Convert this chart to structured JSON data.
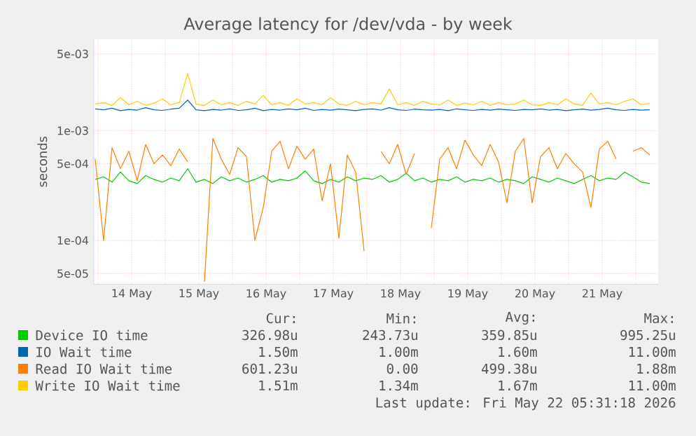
{
  "chart_data": {
    "type": "line",
    "title": "Average latency for /dev/vda - by week",
    "ylabel": "seconds",
    "log": "y",
    "grid": true,
    "legend": "bottom",
    "xlim": [
      "2026-05-13T22:30",
      "2026-05-22T08:00"
    ],
    "ylim": [
      4e-05,
      0.0068
    ],
    "xticks": [
      {
        "value": "2026-05-14T00:00",
        "label": null
      },
      {
        "value": "2026-05-14T12:00",
        "label": "14 May"
      },
      {
        "value": "2026-05-15T00:00",
        "label": null
      },
      {
        "value": "2026-05-15T12:00",
        "label": "15 May"
      },
      {
        "value": "2026-05-16T00:00",
        "label": null
      },
      {
        "value": "2026-05-16T12:00",
        "label": "16 May"
      },
      {
        "value": "2026-05-17T00:00",
        "label": null
      },
      {
        "value": "2026-05-17T12:00",
        "label": "17 May"
      },
      {
        "value": "2026-05-18T00:00",
        "label": null
      },
      {
        "value": "2026-05-18T12:00",
        "label": "18 May"
      },
      {
        "value": "2026-05-19T00:00",
        "label": null
      },
      {
        "value": "2026-05-19T12:00",
        "label": "19 May"
      },
      {
        "value": "2026-05-20T00:00",
        "label": null
      },
      {
        "value": "2026-05-20T12:00",
        "label": "20 May"
      },
      {
        "value": "2026-05-21T00:00",
        "label": null
      },
      {
        "value": "2026-05-21T12:00",
        "label": "21 May"
      },
      {
        "value": "2026-05-22T00:00",
        "label": null
      }
    ],
    "yticks": [
      {
        "value": 5e-05,
        "label": "5e-05"
      },
      {
        "value": 0.0001,
        "label": "1e-04"
      },
      {
        "value": 0.0005,
        "label": "5e-04"
      },
      {
        "value": 0.001,
        "label": "1e-03"
      },
      {
        "value": 0.005,
        "label": "5e-03"
      }
    ],
    "x": [
      "2026-05-13T23:00",
      "2026-05-14T02:00",
      "2026-05-14T05:00",
      "2026-05-14T08:00",
      "2026-05-14T11:00",
      "2026-05-14T14:00",
      "2026-05-14T17:00",
      "2026-05-14T20:00",
      "2026-05-14T23:00",
      "2026-05-15T02:00",
      "2026-05-15T05:00",
      "2026-05-15T08:00",
      "2026-05-15T11:00",
      "2026-05-15T14:00",
      "2026-05-15T17:00",
      "2026-05-15T20:00",
      "2026-05-15T23:00",
      "2026-05-16T02:00",
      "2026-05-16T05:00",
      "2026-05-16T08:00",
      "2026-05-16T11:00",
      "2026-05-16T14:00",
      "2026-05-16T17:00",
      "2026-05-16T20:00",
      "2026-05-16T23:00",
      "2026-05-17T02:00",
      "2026-05-17T05:00",
      "2026-05-17T08:00",
      "2026-05-17T11:00",
      "2026-05-17T14:00",
      "2026-05-17T17:00",
      "2026-05-17T20:00",
      "2026-05-17T23:00",
      "2026-05-18T02:00",
      "2026-05-18T05:00",
      "2026-05-18T08:00",
      "2026-05-18T11:00",
      "2026-05-18T14:00",
      "2026-05-18T17:00",
      "2026-05-18T20:00",
      "2026-05-18T23:00",
      "2026-05-19T02:00",
      "2026-05-19T05:00",
      "2026-05-19T08:00",
      "2026-05-19T11:00",
      "2026-05-19T14:00",
      "2026-05-19T17:00",
      "2026-05-19T20:00",
      "2026-05-19T23:00",
      "2026-05-20T02:00",
      "2026-05-20T05:00",
      "2026-05-20T08:00",
      "2026-05-20T11:00",
      "2026-05-20T14:00",
      "2026-05-20T17:00",
      "2026-05-20T20:00",
      "2026-05-20T23:00",
      "2026-05-21T02:00",
      "2026-05-21T05:00",
      "2026-05-21T08:00",
      "2026-05-21T11:00",
      "2026-05-21T14:00",
      "2026-05-21T17:00",
      "2026-05-21T20:00",
      "2026-05-21T23:00",
      "2026-05-22T02:00",
      "2026-05-22T05:00"
    ],
    "series": [
      {
        "name": "Device IO time",
        "color": "#00cc00",
        "values": [
          0.00036,
          0.00038,
          0.00034,
          0.00042,
          0.00035,
          0.00033,
          0.00039,
          0.00036,
          0.00034,
          0.00037,
          0.00035,
          0.00045,
          0.00034,
          0.00036,
          0.00033,
          0.00038,
          0.00035,
          0.00037,
          0.00034,
          0.00036,
          0.00039,
          0.00034,
          0.00036,
          0.00035,
          0.00037,
          0.00043,
          0.00035,
          0.00033,
          0.00036,
          0.00034,
          0.00038,
          0.00035,
          0.00037,
          0.00036,
          0.00039,
          0.00034,
          0.00036,
          0.00041,
          0.00035,
          0.00037,
          0.00034,
          0.00036,
          0.00035,
          0.00038,
          0.00034,
          0.00036,
          0.00035,
          0.00037,
          0.00034,
          0.00036,
          0.00035,
          0.00033,
          0.00038,
          0.00036,
          0.00034,
          0.00037,
          0.00035,
          0.00033,
          0.00036,
          0.00039,
          0.00035,
          0.00037,
          0.00036,
          0.00042,
          0.00038,
          0.00034,
          0.00033
        ]
      },
      {
        "name": "IO Wait time",
        "color": "#0066b3",
        "values": [
          0.00158,
          0.00155,
          0.0016,
          0.00152,
          0.00156,
          0.00154,
          0.00162,
          0.00155,
          0.00153,
          0.00157,
          0.0016,
          0.0019,
          0.00155,
          0.00152,
          0.00156,
          0.00154,
          0.00158,
          0.00153,
          0.00155,
          0.0016,
          0.00152,
          0.00156,
          0.00154,
          0.00158,
          0.00155,
          0.0016,
          0.00153,
          0.00156,
          0.00154,
          0.00157,
          0.00155,
          0.00152,
          0.00156,
          0.00158,
          0.00154,
          0.00162,
          0.00155,
          0.00153,
          0.00157,
          0.00155,
          0.00154,
          0.00156,
          0.00152,
          0.00158,
          0.00155,
          0.00153,
          0.00156,
          0.00154,
          0.00157,
          0.00155,
          0.00153,
          0.00156,
          0.00155,
          0.00158,
          0.00154,
          0.00156,
          0.00152,
          0.00155,
          0.00157,
          0.00154,
          0.00156,
          0.0016,
          0.00155,
          0.00153,
          0.00156,
          0.00154,
          0.00155
        ]
      },
      {
        "name": "Read IO Wait time",
        "color": "#ff8000",
        "values": [
          0.00055,
          0.0001,
          0.0007,
          0.00045,
          0.00065,
          0.00035,
          0.00075,
          0.0005,
          0.0006,
          0.00048,
          0.00068,
          0.00052,
          null,
          4.2e-05,
          0.00085,
          0.00055,
          0.0004,
          0.0007,
          0.00058,
          0.0001,
          0.0002,
          0.00065,
          0.0008,
          0.00045,
          0.00072,
          0.00055,
          0.00068,
          0.00023,
          0.0005,
          0.000105,
          0.0006,
          0.00042,
          8e-05,
          null,
          0.00065,
          0.0005,
          0.00075,
          0.0004,
          0.00062,
          null,
          0.00013,
          0.00055,
          0.0007,
          0.00045,
          0.00082,
          0.0006,
          0.00048,
          0.00075,
          0.00052,
          0.00022,
          0.00065,
          0.00085,
          0.00022,
          0.00058,
          0.0007,
          0.00045,
          0.00062,
          0.0005,
          0.00042,
          0.0002,
          0.00068,
          0.0008,
          0.00055,
          null,
          0.00065,
          0.0007,
          0.0006
        ]
      },
      {
        "name": "Write IO Wait time",
        "color": "#ffcc00",
        "values": [
          0.00175,
          0.0018,
          0.0017,
          0.002,
          0.00172,
          0.00185,
          0.0017,
          0.00178,
          0.00195,
          0.00172,
          0.0018,
          0.0033,
          0.00175,
          0.0017,
          0.0019,
          0.00172,
          0.0018,
          0.0017,
          0.00185,
          0.00175,
          0.0021,
          0.00172,
          0.0018,
          0.0017,
          0.00195,
          0.00175,
          0.0018,
          0.00172,
          0.002,
          0.00175,
          0.0017,
          0.00185,
          0.00172,
          0.0018,
          0.00175,
          0.0024,
          0.00172,
          0.0018,
          0.0017,
          0.00185,
          0.00175,
          0.00172,
          0.0019,
          0.0017,
          0.00178,
          0.00172,
          0.00185,
          0.0017,
          0.0018,
          0.00172,
          0.00175,
          0.0019,
          0.00172,
          0.0017,
          0.0018,
          0.00172,
          0.00195,
          0.00175,
          0.0017,
          0.0022,
          0.00175,
          0.0018,
          0.00172,
          0.00185,
          0.00195,
          0.00172,
          0.00178
        ]
      }
    ],
    "annotations": [
      "Cur:",
      "Min:",
      "Avg:",
      "Max:",
      "326.98u",
      "243.73u",
      "359.85u",
      "995.25u",
      "1.50m",
      "1.00m",
      "1.60m",
      "11.00m",
      "601.23u",
      "0.00",
      "499.38u",
      "1.88m",
      "1.51m",
      "1.34m",
      "1.67m",
      "11.00m",
      "Last update: Fri May 22 05:31:18 2026"
    ]
  }
}
